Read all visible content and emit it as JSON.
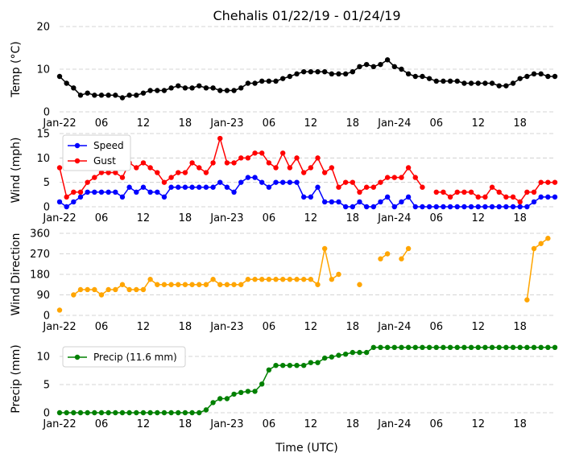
{
  "chart_data": {
    "title": "Chehalis 01/22/19 - 01/24/19",
    "xlabel": "Time (UTC)",
    "x_tick_labels": [
      "Jan-22",
      "06",
      "12",
      "18",
      "Jan-23",
      "06",
      "12",
      "18",
      "Jan-24",
      "06",
      "12",
      "18"
    ],
    "x_hours": [
      0,
      1,
      2,
      3,
      4,
      5,
      6,
      7,
      8,
      9,
      10,
      11,
      12,
      13,
      14,
      15,
      16,
      17,
      18,
      19,
      20,
      21,
      22,
      23,
      24,
      25,
      26,
      27,
      28,
      29,
      30,
      31,
      32,
      33,
      34,
      35,
      36,
      37,
      38,
      39,
      40,
      41,
      42,
      43,
      44,
      45,
      46,
      47,
      48,
      49,
      50,
      51,
      52,
      53,
      54,
      55,
      56,
      57,
      58,
      59,
      60,
      61,
      62,
      63,
      64,
      65,
      66,
      67,
      68,
      69,
      70,
      71
    ],
    "panels": [
      {
        "id": "temp",
        "type": "line",
        "ylabel": "Temp ($^{\\circ}$C)",
        "ylabel_display": "Temp (°C)",
        "ylim": [
          0,
          20
        ],
        "yticks": [
          0,
          10,
          20
        ],
        "grid": true,
        "series": [
          {
            "color": "#000000",
            "values": [
              8.3,
              6.7,
              5.6,
              3.9,
              4.4,
              3.9,
              3.9,
              3.9,
              3.9,
              3.3,
              3.9,
              3.9,
              4.4,
              5.0,
              5.0,
              5.0,
              5.6,
              6.1,
              5.6,
              5.6,
              6.1,
              5.6,
              5.6,
              5.0,
              5.0,
              5.0,
              5.6,
              6.7,
              6.7,
              7.2,
              7.2,
              7.2,
              7.8,
              8.3,
              8.9,
              9.4,
              9.4,
              9.4,
              9.4,
              8.9,
              8.9,
              8.9,
              9.4,
              10.6,
              11.1,
              10.6,
              11.1,
              12.2,
              10.6,
              10.0,
              8.9,
              8.3,
              8.3,
              7.8,
              7.2,
              7.2,
              7.2,
              7.2,
              6.7,
              6.7,
              6.7,
              6.7,
              6.7,
              6.1,
              6.1,
              6.7,
              7.8,
              8.3,
              8.9,
              8.9,
              8.3,
              8.3
            ]
          }
        ]
      },
      {
        "id": "wind",
        "type": "line",
        "ylabel": "Wind (mph)",
        "ylim": [
          0,
          15
        ],
        "yticks": [
          0,
          5,
          10,
          15
        ],
        "grid": true,
        "legend": "top-left",
        "series": [
          {
            "name": "Speed",
            "color": "#0000ff",
            "values": [
              1,
              0,
              1,
              2,
              3,
              3,
              3,
              3,
              3,
              2,
              4,
              3,
              4,
              3,
              3,
              2,
              4,
              4,
              4,
              4,
              4,
              4,
              4,
              5,
              4,
              3,
              5,
              6,
              6,
              5,
              4,
              5,
              5,
              5,
              5,
              2,
              2,
              4,
              1,
              1,
              1,
              0,
              0,
              1,
              0,
              0,
              1,
              2,
              0,
              1,
              2,
              0,
              0,
              0,
              0,
              0,
              0,
              0,
              0,
              0,
              0,
              0,
              0,
              0,
              0,
              0,
              0,
              0,
              1,
              2,
              2,
              2
            ]
          },
          {
            "name": "Gust",
            "color": "#ff0000",
            "values": [
              8,
              2,
              3,
              3,
              5,
              6,
              7,
              7,
              7,
              6,
              9,
              8,
              9,
              8,
              7,
              5,
              6,
              7,
              7,
              9,
              8,
              7,
              9,
              14,
              9,
              9,
              10,
              10,
              11,
              11,
              9,
              8,
              11,
              8,
              10,
              7,
              8,
              10,
              7,
              8,
              4,
              5,
              5,
              3,
              4,
              4,
              5,
              6,
              6,
              6,
              8,
              6,
              4,
              null,
              3,
              3,
              2,
              3,
              3,
              3,
              2,
              2,
              4,
              3,
              2,
              2,
              1,
              3,
              3,
              5,
              5,
              5
            ]
          }
        ]
      },
      {
        "id": "dir",
        "type": "scatter-line",
        "ylabel": "Wind Direction",
        "ylim": [
          0,
          360
        ],
        "yticks": [
          0,
          90,
          180,
          270,
          360
        ],
        "grid": true,
        "series": [
          {
            "color": "#ffa500",
            "values": [
              23,
              null,
              90,
              113,
              113,
              113,
              90,
              113,
              113,
              135,
              113,
              113,
              113,
              158,
              135,
              135,
              135,
              135,
              135,
              135,
              135,
              135,
              158,
              135,
              135,
              135,
              135,
              158,
              158,
              158,
              158,
              158,
              158,
              158,
              158,
              158,
              158,
              135,
              293,
              158,
              180,
              null,
              null,
              135,
              null,
              null,
              248,
              270,
              null,
              248,
              293,
              null,
              null,
              null,
              null,
              null,
              null,
              null,
              null,
              null,
              null,
              null,
              null,
              null,
              null,
              null,
              null,
              68,
              293,
              315,
              338,
              null
            ]
          }
        ]
      },
      {
        "id": "precip",
        "type": "line",
        "ylabel": "Precip (mm)",
        "ylim": [
          0,
          12
        ],
        "yticks": [
          0,
          5,
          10
        ],
        "grid": true,
        "legend": "top-left",
        "series": [
          {
            "name": "Precip (11.6 mm)",
            "color": "#008000",
            "values": [
              0,
              0,
              0,
              0,
              0,
              0,
              0,
              0,
              0,
              0,
              0,
              0,
              0,
              0,
              0,
              0,
              0,
              0,
              0,
              0,
              0,
              0.5,
              1.8,
              2.5,
              2.5,
              3.3,
              3.6,
              3.8,
              3.8,
              5.1,
              7.6,
              8.4,
              8.4,
              8.4,
              8.4,
              8.4,
              8.9,
              8.9,
              9.7,
              9.9,
              10.2,
              10.4,
              10.7,
              10.7,
              10.7,
              11.6,
              11.6,
              11.6,
              11.6,
              11.6,
              11.6,
              11.6,
              11.6,
              11.6,
              11.6,
              11.6,
              11.6,
              11.6,
              11.6,
              11.6,
              11.6,
              11.6,
              11.6,
              11.6,
              11.6,
              11.6,
              11.6,
              11.6,
              11.6,
              11.6,
              11.6,
              11.6
            ]
          }
        ]
      }
    ]
  }
}
